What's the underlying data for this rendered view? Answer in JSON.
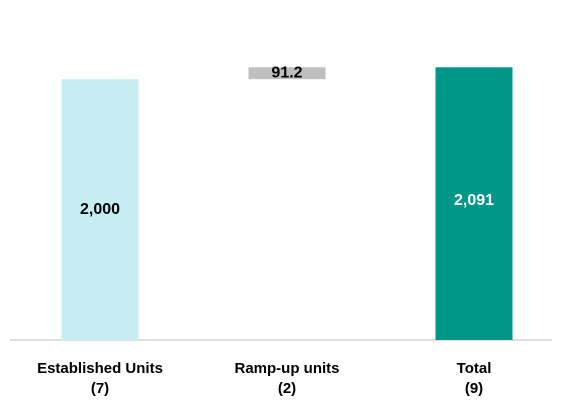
{
  "chart_data": {
    "type": "waterfall",
    "categories": [
      "Established Units\n(7)",
      "Ramp-up units\n(2)",
      "Total\n(9)"
    ],
    "values": [
      2000,
      91.2,
      2091
    ],
    "value_labels": [
      "2,000",
      "91.2",
      "2,091"
    ],
    "measure": [
      "absolute",
      "relative",
      "total"
    ],
    "colors": [
      "#c5edf3",
      "#bfbfbf",
      "#009688"
    ],
    "label_colors": [
      "#000000",
      "#000000",
      "#ffffff"
    ],
    "ylim": [
      0,
      2400
    ]
  }
}
